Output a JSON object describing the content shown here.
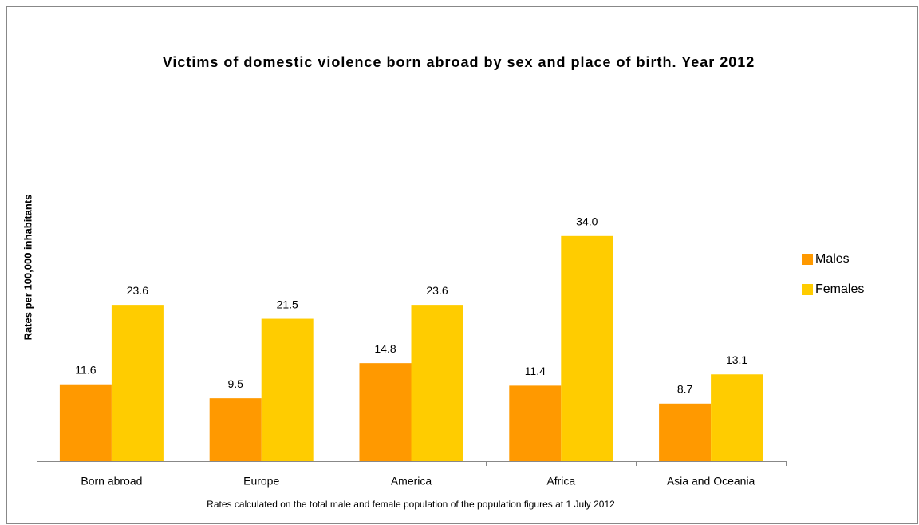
{
  "chart_data": {
    "type": "bar",
    "title": "Victims of domestic violence born abroad by sex and place of birth. Year 2012",
    "y_label": "Rates per 100,000 inhabitants",
    "footnote": "Rates calculated on the total male and female population of the population figures at 1 July 2012",
    "categories": [
      "Born abroad",
      "Europe",
      "America",
      "Africa",
      "Asia and Oceania"
    ],
    "series": [
      {
        "name": "Males",
        "color": "#ff9900",
        "values": [
          11.6,
          9.5,
          14.8,
          11.4,
          8.7
        ],
        "value_labels": [
          "11.6",
          "9.5",
          "14.8",
          "11.4",
          "8.7"
        ]
      },
      {
        "name": "Females",
        "color": "#ffcc00",
        "values": [
          23.6,
          21.5,
          23.6,
          34.0,
          13.1
        ],
        "value_labels": [
          "23.6",
          "21.5",
          "23.6",
          "34.0",
          "13.1"
        ]
      }
    ],
    "ylim": [
      0,
      40
    ],
    "legend": "right"
  }
}
